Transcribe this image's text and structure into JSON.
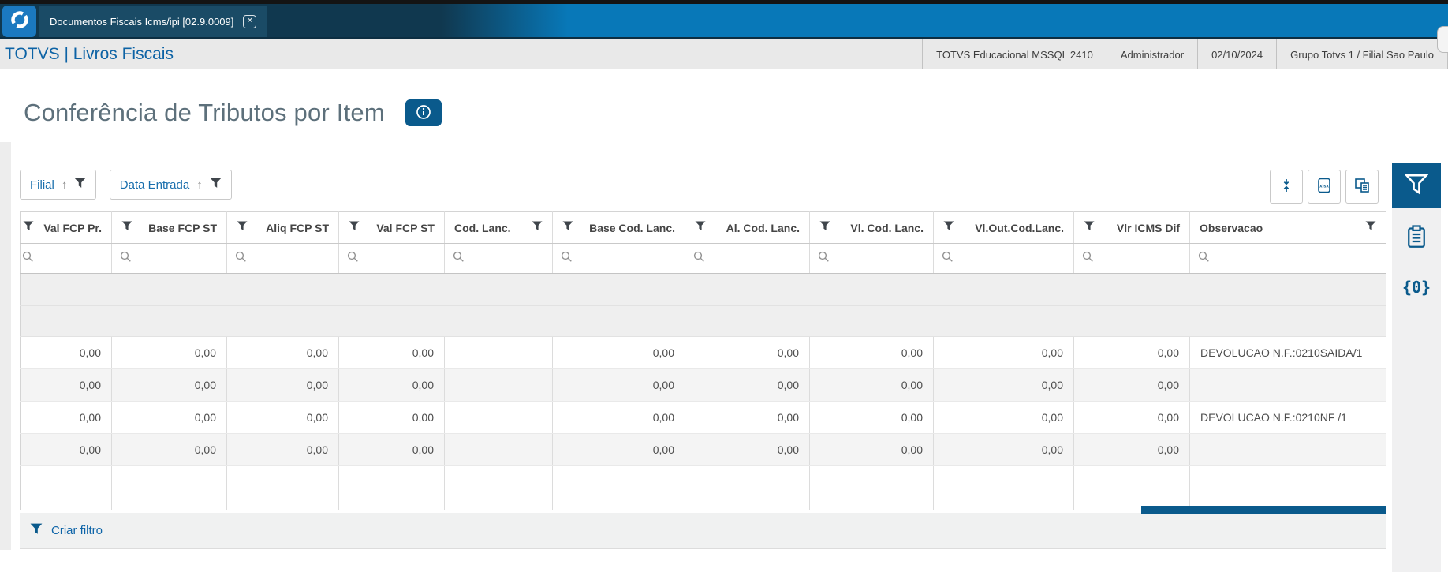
{
  "topbar": {
    "tab_title": "Documentos Fiscais Icms/ipi [02.9.0009]",
    "close_glyph": "✕"
  },
  "appbar": {
    "brand": "TOTVS | Livros Fiscais",
    "segments": [
      "TOTVS Educacional MSSQL 2410",
      "Administrador",
      "02/10/2024",
      "Grupo Totvs 1 / Filial Sao Paulo"
    ]
  },
  "page": {
    "title": "Conferência de Tributos por Item"
  },
  "filter_chips": [
    {
      "label": "Filial"
    },
    {
      "label": "Data Entrada"
    }
  ],
  "toolbar": {
    "export_icon_label": "xlsx"
  },
  "grid": {
    "columns": [
      {
        "label": "Val FCP Pr.",
        "align": "right"
      },
      {
        "label": "Base FCP ST",
        "align": "right"
      },
      {
        "label": "Aliq FCP ST",
        "align": "right"
      },
      {
        "label": "Val FCP ST",
        "align": "right"
      },
      {
        "label": "Cod. Lanc.",
        "align": "left"
      },
      {
        "label": "Base Cod. Lanc.",
        "align": "right"
      },
      {
        "label": "Al. Cod. Lanc.",
        "align": "right"
      },
      {
        "label": "Vl. Cod. Lanc.",
        "align": "right"
      },
      {
        "label": "Vl.Out.Cod.Lanc.",
        "align": "right"
      },
      {
        "label": "Vlr ICMS Dif",
        "align": "right"
      },
      {
        "label": "Observacao",
        "align": "left"
      }
    ],
    "search_row": {
      "values": [
        "",
        "",
        "",
        "",
        "",
        "",
        "",
        "",
        "",
        "",
        ""
      ]
    },
    "rows": [
      {
        "values": [
          "0,00",
          "0,00",
          "0,00",
          "0,00",
          "",
          "0,00",
          "0,00",
          "0,00",
          "0,00",
          "0,00",
          "DEVOLUCAO N.F.:0210SAIDA/1"
        ]
      },
      {
        "values": [
          "0,00",
          "0,00",
          "0,00",
          "0,00",
          "",
          "0,00",
          "0,00",
          "0,00",
          "0,00",
          "0,00",
          ""
        ]
      },
      {
        "values": [
          "0,00",
          "0,00",
          "0,00",
          "0,00",
          "",
          "0,00",
          "0,00",
          "0,00",
          "0,00",
          "0,00",
          "DEVOLUCAO N.F.:0210NF /1"
        ]
      },
      {
        "values": [
          "0,00",
          "0,00",
          "0,00",
          "0,00",
          "",
          "0,00",
          "0,00",
          "0,00",
          "0,00",
          "0,00",
          ""
        ]
      },
      {
        "values": [
          "",
          "",
          "",
          "",
          "",
          "",
          "",
          "",
          "",
          "",
          ""
        ]
      }
    ],
    "footer_link": "Criar filtro"
  },
  "side_rail": {
    "badge_label": "{0}"
  },
  "colors": {
    "accent": "#0a5a8c",
    "link_blue": "#1a6fad",
    "topbar_blue": "#0878b8",
    "topbar_dark": "#10384f",
    "header_gray": "#e9e9e9"
  }
}
